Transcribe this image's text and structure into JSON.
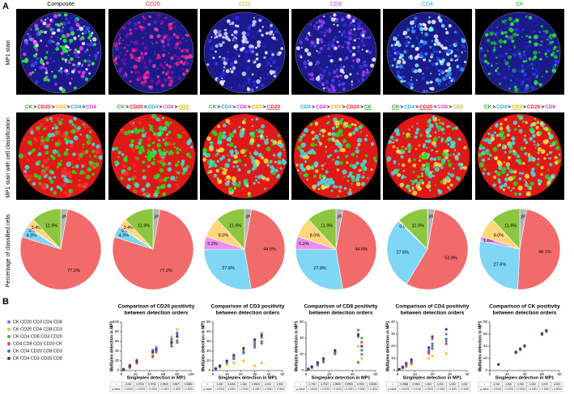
{
  "panel_labels": [
    "A",
    "B"
  ],
  "row_labels": [
    "MP1 stain",
    "MP1 stain with cell classification",
    "Percentage of classified cells"
  ],
  "stain_titles": [
    "Composite",
    "CD20",
    "CD3",
    "CD8",
    "CD4",
    "CK"
  ],
  "separator": ">",
  "marker_colors": {
    "CK": "#22b022",
    "CD20": "#e8202a",
    "CD3": "#e0b000",
    "CD4": "#1fb0e0",
    "CD8": "#d03fd0"
  },
  "orders": [
    {
      "markers": [
        "CK",
        "CD20",
        "CD3",
        "CD4",
        "CD8"
      ],
      "underlined": []
    },
    {
      "markers": [
        "CK",
        "CD20",
        "CD4",
        "CD8",
        "CD3"
      ],
      "underlined": [
        4
      ]
    },
    {
      "markers": [
        "CK",
        "CD4",
        "CD8",
        "CD3",
        "CD20"
      ],
      "underlined": [
        4
      ]
    },
    {
      "markers": [
        "CD4",
        "CD8",
        "CD3",
        "CD20",
        "CK"
      ],
      "underlined": [
        4
      ]
    },
    {
      "markers": [
        "CK",
        "CD4",
        "CD20",
        "CD8",
        "CD3"
      ],
      "underlined": [
        0,
        2
      ]
    },
    {
      "markers": [
        "CK",
        "CD4",
        "CD3",
        "CD20",
        "CD8"
      ],
      "underlined": [
        2
      ]
    }
  ],
  "chart_data": [
    {
      "type": "pie",
      "values": [
        2.8,
        77.2,
        4.3,
        0.5,
        3.4,
        11.9
      ],
      "value_labels": [
        "2.8%",
        "77.2%",
        "4.3%",
        "0.5%",
        "3.4%",
        "11.9%"
      ],
      "colors": [
        "#b4b4b4",
        "#f26b6b",
        "#7fd6f5",
        "#f08cf0",
        "#ffd67a",
        "#8dc63f"
      ]
    },
    {
      "type": "pie",
      "values": [
        2.8,
        77.2,
        4.3,
        0.5,
        3.4,
        11.9
      ],
      "value_labels": [
        "2.8%",
        "77.2%",
        "4.3%",
        "0.5%",
        "3.4%",
        "11.9%"
      ],
      "colors": [
        "#b4b4b4",
        "#f26b6b",
        "#7fd6f5",
        "#f08cf0",
        "#ffd67a",
        "#8dc63f"
      ]
    },
    {
      "type": "pie",
      "values": [
        2.8,
        44.6,
        27.6,
        5.2,
        8.0,
        11.9
      ],
      "value_labels": [
        "2.8%",
        "44.6%",
        "27.6%",
        "5.2%",
        "8.0%",
        "11.9%"
      ],
      "colors": [
        "#b4b4b4",
        "#f26b6b",
        "#7fd6f5",
        "#f08cf0",
        "#ffd67a",
        "#8dc63f"
      ]
    },
    {
      "type": "pie",
      "values": [
        2.8,
        44.6,
        27.6,
        5.2,
        8.0,
        11.9
      ],
      "value_labels": [
        "2.8%",
        "44.6%",
        "27.6%",
        "5.2%",
        "8.0%",
        "11.9%"
      ],
      "colors": [
        "#b4b4b4",
        "#f26b6b",
        "#7fd6f5",
        "#f08cf0",
        "#ffd67a",
        "#8dc63f"
      ]
    },
    {
      "type": "pie",
      "values": [
        2.8,
        53.9,
        27.6,
        0.5,
        11.9
      ],
      "value_labels": [
        "2.8%",
        "53.9%",
        "27.6%",
        "0.5%",
        "11.9%"
      ],
      "colors": [
        "#b4b4b4",
        "#f26b6b",
        "#7fd6f5",
        "#ffd67a",
        "#8dc63f"
      ]
    },
    {
      "type": "pie",
      "values": [
        2.8,
        48.1,
        27.6,
        1.8,
        8.0,
        11.9
      ],
      "value_labels": [
        "2.8%",
        "48.1%",
        "27.6%",
        "1.8%",
        "8.0%",
        "11.9%"
      ],
      "colors": [
        "#b4b4b4",
        "#f26b6b",
        "#7fd6f5",
        "#f08cf0",
        "#ffd67a",
        "#8dc63f"
      ]
    },
    {
      "type": "scatter",
      "title": "Comparison of CD20 positivity",
      "subtitle": "between detection orders",
      "xlabel": "Singleplex detection in MP1",
      "ylabel": "Multiplex detection in MP1",
      "xlim": [
        0,
        100
      ],
      "xticks": [
        0,
        20,
        40,
        60,
        80,
        100
      ],
      "ylim": [
        0,
        100
      ],
      "yticks": [
        0,
        20,
        40,
        60,
        80,
        100
      ],
      "x": [
        3,
        12,
        22,
        45,
        50,
        72,
        80
      ],
      "series": [
        {
          "name": "CK CD20 CD3 CD4 CD8",
          "color": "#a05cd6",
          "values": [
            2,
            10,
            20,
            40,
            48,
            60,
            78
          ]
        },
        {
          "name": "CK CD20 CD4 CD8 CD3",
          "color": "#f0c419",
          "values": [
            3,
            12,
            22,
            35,
            45,
            70,
            85
          ]
        },
        {
          "name": "CK CD4 CD8 CD3 CD20",
          "color": "#3cb043",
          "values": [
            2,
            8,
            18,
            30,
            42,
            55,
            62
          ]
        },
        {
          "name": "CD4 CD8 CD3 CD20 CK",
          "color": "#e0475a",
          "values": [
            1,
            6,
            15,
            28,
            38,
            50,
            58
          ]
        },
        {
          "name": "CK CD4 CD20 CD8 CD3",
          "color": "#3c78d8",
          "values": [
            3,
            11,
            21,
            42,
            40,
            65,
            75
          ]
        },
        {
          "name": "CK CD4 CD3 CD20 CD8",
          "color": "#5b2a86",
          "values": [
            2,
            9,
            19,
            38,
            44,
            58,
            70
          ]
        }
      ],
      "table": [
        [
          "r",
          "1.000",
          "0.9700",
          "0.9700",
          "0.9900",
          "0.9877",
          "0.9850"
        ],
        [
          "p-value",
          "< 0.0001",
          "< 0.0001",
          "< 0.0001",
          "< 0.0001",
          "< 0.0001",
          "< 0.0001"
        ]
      ]
    },
    {
      "type": "scatter",
      "title": "Comparison of CD3 positivity",
      "subtitle": "between detection orders",
      "xlabel": "Singleplex detection in MP1",
      "ylabel": "Multiplex detection in MP1",
      "xlim": [
        0,
        50
      ],
      "xticks": [
        0,
        10,
        20,
        30,
        40,
        50
      ],
      "ylim": [
        0,
        50
      ],
      "yticks": [
        0,
        10,
        20,
        30,
        40,
        50
      ],
      "x": [
        2,
        5,
        10,
        15,
        22,
        30,
        35
      ],
      "series": [
        {
          "color": "#a05cd6",
          "values": [
            2,
            5,
            10,
            15,
            22,
            30,
            38
          ]
        },
        {
          "color": "#f0c419",
          "values": [
            1,
            3,
            6,
            8,
            10,
            5,
            8
          ]
        },
        {
          "color": "#3cb043",
          "values": [
            2,
            5,
            9,
            14,
            20,
            28,
            34
          ]
        },
        {
          "color": "#e0475a",
          "values": [
            2,
            4,
            9,
            13,
            19,
            26,
            30
          ]
        },
        {
          "color": "#3c78d8",
          "values": [
            1,
            4,
            8,
            12,
            18,
            24,
            28
          ]
        },
        {
          "color": "#5b2a86",
          "values": [
            2,
            5,
            10,
            16,
            23,
            32,
            36
          ]
        }
      ],
      "table": [
        [
          "r",
          "1.000",
          "0.6200",
          "1.000",
          "0.9900",
          "1.000",
          "1.000"
        ],
        [
          "p-value",
          "< 0.0001",
          "0.0001",
          "< 0.0001",
          "< 0.0001",
          "< 0.0001",
          "< 0.0001"
        ]
      ]
    },
    {
      "type": "scatter",
      "title": "Comparison of CD8 positivity",
      "subtitle": "between detection orders",
      "xlabel": "Singleplex detection in MP1",
      "ylabel": "Multiplex detection in MP1",
      "xlim": [
        0,
        60
      ],
      "xticks": [
        0,
        20,
        40,
        60
      ],
      "ylim": [
        0,
        60
      ],
      "yticks": [
        0,
        20,
        40,
        60
      ],
      "x": [
        2,
        5,
        10,
        15,
        25,
        45,
        48
      ],
      "series": [
        {
          "color": "#a05cd6",
          "values": [
            2,
            4,
            8,
            12,
            22,
            45,
            20
          ]
        },
        {
          "color": "#f0c419",
          "values": [
            1,
            3,
            6,
            10,
            20,
            30,
            15
          ]
        },
        {
          "color": "#3cb043",
          "values": [
            2,
            5,
            9,
            14,
            24,
            50,
            40
          ]
        },
        {
          "color": "#e0475a",
          "values": [
            1,
            4,
            8,
            13,
            21,
            42,
            35
          ]
        },
        {
          "color": "#3c78d8",
          "values": [
            2,
            4,
            7,
            11,
            23,
            10,
            25
          ]
        },
        {
          "color": "#5b2a86",
          "values": [
            2,
            5,
            10,
            15,
            25,
            44,
            30
          ]
        }
      ],
      "table": [
        [
          "r",
          "0.7917",
          "0.7917",
          "0.9955",
          "0.9955",
          "0.7917",
          "0.9528"
        ],
        [
          "p-value",
          "< 0.0001",
          "< 0.0001",
          "< 0.0001",
          "< 0.0001",
          "< 0.0001",
          "< 0.0001"
        ]
      ]
    },
    {
      "type": "scatter",
      "title": "Comparison of CD4 positivity",
      "subtitle": "between detection orders",
      "xlabel": "Singleplex detection in MP1",
      "ylabel": "Multiplex detection in MP1",
      "xlim": [
        0,
        40
      ],
      "xticks": [
        0,
        10,
        20,
        30,
        40
      ],
      "ylim": [
        0,
        40
      ],
      "yticks": [
        0,
        10,
        20,
        30,
        40
      ],
      "x": [
        1,
        3,
        5,
        8,
        18,
        20,
        28
      ],
      "series": [
        {
          "color": "#a05cd6",
          "values": [
            1,
            3,
            5,
            8,
            17,
            26,
            30
          ]
        },
        {
          "color": "#f0c419",
          "values": [
            0.5,
            2,
            3,
            5,
            10,
            12,
            14
          ]
        },
        {
          "color": "#3cb043",
          "values": [
            1,
            3,
            4,
            7,
            15,
            20,
            24
          ]
        },
        {
          "color": "#e0475a",
          "values": [
            1,
            2,
            4,
            6,
            14,
            18,
            22
          ]
        },
        {
          "color": "#3c78d8",
          "values": [
            1,
            3,
            5,
            8,
            16,
            22,
            26
          ]
        },
        {
          "color": "#5b2a86",
          "values": [
            1,
            3,
            6,
            9,
            19,
            28,
            34
          ]
        }
      ],
      "table": [
        [
          "r",
          "0.9565",
          "0.9591",
          "1.000",
          "1.000",
          "1.000",
          "1.000"
        ],
        [
          "p-value",
          "< 0.0001",
          "< 0.0001",
          "< 0.0001",
          "< 0.0001",
          "< 0.0001",
          "< 0.0001"
        ]
      ]
    },
    {
      "type": "scatter",
      "title": "Comparison of CK positivity",
      "subtitle": "between detection orders",
      "xlabel": "Singleplex detection in MP1",
      "ylabel": "Multiplex detection in MP1",
      "xlim": [
        0,
        80
      ],
      "xticks": [
        0,
        20,
        40,
        60,
        80
      ],
      "ylim": [
        0,
        80
      ],
      "yticks": [
        0,
        20,
        40,
        60,
        80
      ],
      "x": [
        10,
        30,
        35,
        40,
        60,
        65
      ],
      "series": [
        {
          "color": "#a05cd6",
          "values": [
            10,
            30,
            35,
            40,
            60,
            65
          ]
        },
        {
          "color": "#f0c419",
          "values": [
            10,
            30,
            35,
            41,
            61,
            66
          ]
        },
        {
          "color": "#3cb043",
          "values": [
            10,
            29,
            34,
            40,
            60,
            64
          ]
        },
        {
          "color": "#e0475a",
          "values": [
            10,
            30,
            35,
            40,
            59,
            65
          ]
        },
        {
          "color": "#3c78d8",
          "values": [
            10,
            31,
            35,
            40,
            60,
            66
          ]
        },
        {
          "color": "#5b2a86",
          "values": [
            10,
            30,
            36,
            41,
            61,
            66
          ]
        }
      ],
      "table": [
        [
          "r",
          "1.000",
          "1.000",
          "1.000",
          "1.000",
          "1.000",
          "1.000"
        ],
        [
          "p-value",
          "< 0.0001",
          "< 0.0001",
          "< 0.0001",
          "< 0.0001",
          "< 0.0001",
          "< 0.0001"
        ]
      ]
    }
  ]
}
